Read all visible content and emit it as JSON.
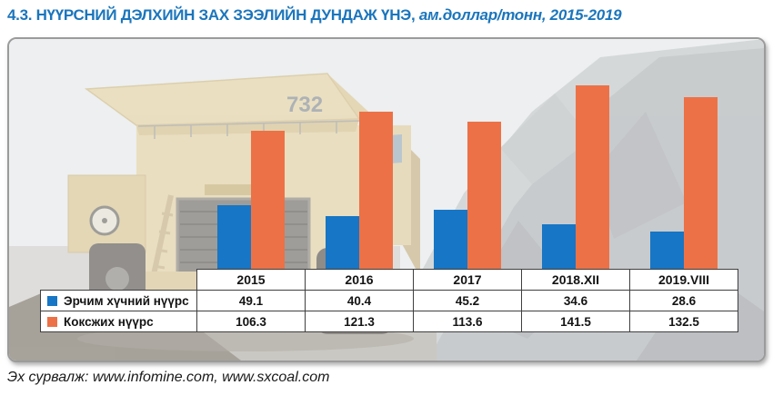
{
  "title": {
    "main": "4.3. НҮҮРСНИЙ ДЭЛХИЙН ЗАХ ЗЭЭЛИЙН ДУНДАЖ ҮНЭ,",
    "italic": "ам.доллар/тонн, 2015-2019"
  },
  "source": "Эх сурвалж: www.infomine.com, www.sxcoal.com",
  "photo": {
    "truck_number": "732"
  },
  "colors": {
    "title_blue": "#1b75bc",
    "energy_coal": "#1776c5",
    "coking_coal": "#ed7146",
    "table_border": "#3f3f3f"
  },
  "chart_data": {
    "type": "bar",
    "title": "НҮҮРСНИЙ ДЭЛХИЙН ЗАХ ЗЭЭЛИЙН ДУНДАЖ ҮНЭ, ам.доллар/тонн, 2015-2019",
    "categories": [
      "2015",
      "2016",
      "2017",
      "2018.XII",
      "2019.VIII"
    ],
    "series": [
      {
        "key": "energy-coal",
        "name": "Эрчим хүчний нүүрс",
        "color": "#1776c5",
        "values": [
          49.1,
          40.4,
          45.2,
          34.6,
          28.6
        ]
      },
      {
        "key": "coking-coal",
        "name": "Коксжих нүүрс",
        "color": "#ed7146",
        "values": [
          106.3,
          121.3,
          113.6,
          141.5,
          132.5
        ]
      }
    ],
    "xlabel": "",
    "ylabel": "ам.доллар/тонн",
    "ylim": [
      0,
      150
    ],
    "grid": false,
    "legend_position": "table-left",
    "data_table_shown": true
  }
}
